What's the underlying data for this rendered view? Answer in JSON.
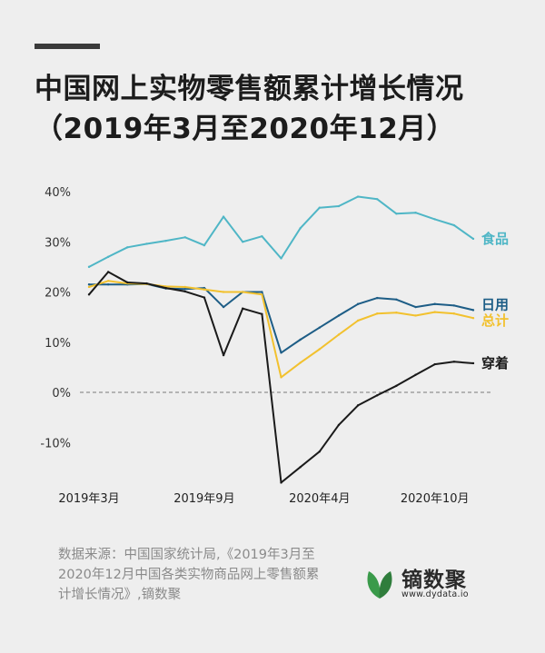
{
  "header": {
    "title": "中国网上实物零售额累计增长情况（2019年3月至2020年12月）"
  },
  "source": {
    "text": "数据来源：中国国家统计局,《2019年3月至2020年12月中国各类实物商品网上零售额累计增长情况》,镝数聚"
  },
  "brand": {
    "name": "镝数聚",
    "url": "www.dydata.io",
    "color": "#3a9a4a"
  },
  "chart_data": {
    "type": "line",
    "title": "中国网上实物零售额累计增长情况（2019年3月至2020年12月）",
    "xlabel": "",
    "ylabel": "",
    "ylim": [
      -20,
      42
    ],
    "yticks": [
      40,
      30,
      20,
      10,
      0,
      -10
    ],
    "ytick_labels": [
      "40%",
      "30%",
      "20%",
      "10%",
      "0%",
      "-10%"
    ],
    "x": [
      "2019-03",
      "2019-04",
      "2019-05",
      "2019-06",
      "2019-07",
      "2019-08",
      "2019-09",
      "2019-10",
      "2019-11",
      "2019-12",
      "2020-02",
      "2020-03",
      "2020-04",
      "2020-05",
      "2020-06",
      "2020-07",
      "2020-08",
      "2020-09",
      "2020-10",
      "2020-11",
      "2020-12"
    ],
    "xtick_labels": [
      {
        "index": 0,
        "label": "2019年3月"
      },
      {
        "index": 6,
        "label": "2019年9月"
      },
      {
        "index": 12,
        "label": "2020年4月"
      },
      {
        "index": 18,
        "label": "2020年10月"
      }
    ],
    "zero_line": "dashed",
    "series": [
      {
        "name": "食品",
        "color": "#4fb6c6",
        "values": [
          25.0,
          27.0,
          28.9,
          29.6,
          30.2,
          30.9,
          29.3,
          35.0,
          30.0,
          31.1,
          26.7,
          32.7,
          36.8,
          37.1,
          39.0,
          38.5,
          35.6,
          35.8,
          34.5,
          33.3,
          30.6
        ]
      },
      {
        "name": "日用",
        "color": "#1d5d86",
        "values": [
          21.5,
          21.5,
          21.5,
          21.6,
          20.7,
          20.6,
          20.8,
          17.0,
          20.0,
          20.0,
          7.9,
          10.5,
          12.9,
          15.3,
          17.6,
          18.8,
          18.5,
          17.0,
          17.6,
          17.3,
          16.4
        ]
      },
      {
        "name": "总计",
        "color": "#f2c12e",
        "values": [
          21.0,
          22.2,
          21.7,
          21.6,
          21.1,
          21.0,
          20.5,
          20.0,
          20.0,
          19.5,
          3.0,
          5.9,
          8.6,
          11.5,
          14.3,
          15.7,
          15.9,
          15.3,
          16.0,
          15.7,
          14.8
        ]
      },
      {
        "name": "穿着",
        "color": "#1a1a1a",
        "values": [
          19.5,
          24.0,
          21.9,
          21.7,
          20.8,
          20.1,
          18.9,
          7.4,
          16.7,
          15.6,
          -18.0,
          -14.9,
          -11.8,
          -6.5,
          -2.6,
          -0.6,
          1.3,
          3.5,
          5.6,
          6.1,
          5.8
        ]
      }
    ],
    "legend": "inline-right"
  }
}
